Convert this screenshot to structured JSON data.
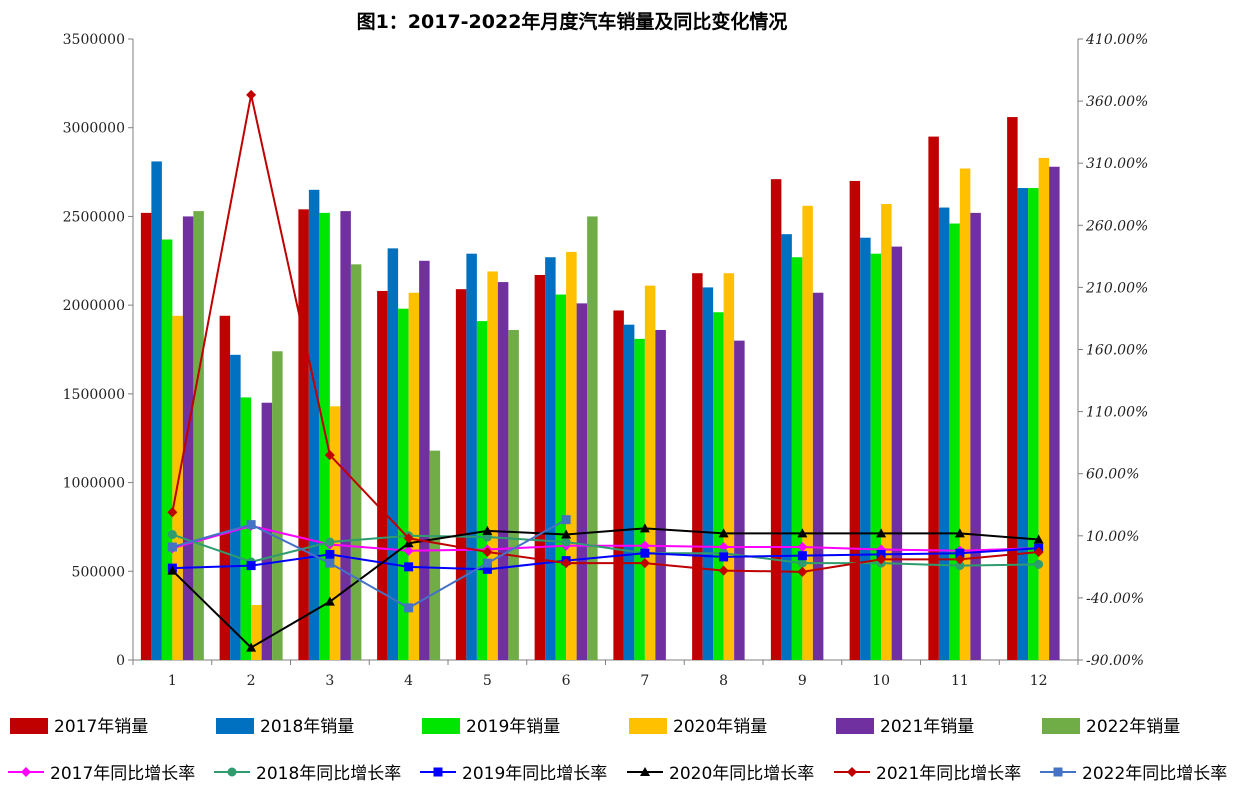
{
  "chart_data": {
    "type": "bar",
    "title": "图1：2017-2022年月度汽车销量及同比变化情况",
    "categories": [
      "1",
      "2",
      "3",
      "4",
      "5",
      "6",
      "7",
      "8",
      "9",
      "10",
      "11",
      "12"
    ],
    "y_left": {
      "min": 0,
      "max": 3500000,
      "ticks": [
        "0",
        "500000",
        "1000000",
        "1500000",
        "2000000",
        "2500000",
        "3000000",
        "3500000"
      ]
    },
    "y_right": {
      "min": -90,
      "max": 410,
      "ticks": [
        "-90.00%",
        "-40.00%",
        "10.00%",
        "60.00%",
        "110.00%",
        "160.00%",
        "210.00%",
        "260.00%",
        "310.00%",
        "360.00%",
        "410.00%"
      ]
    },
    "bar_series": [
      {
        "name": "2017年销量",
        "color": "#C00000",
        "values": [
          2520000,
          1940000,
          2540000,
          2080000,
          2090000,
          2170000,
          1970000,
          2180000,
          2710000,
          2700000,
          2950000,
          3060000
        ]
      },
      {
        "name": "2018年销量",
        "color": "#0070C0",
        "values": [
          2810000,
          1720000,
          2650000,
          2320000,
          2290000,
          2270000,
          1890000,
          2100000,
          2400000,
          2380000,
          2550000,
          2660000
        ]
      },
      {
        "name": "2019年销量",
        "color": "#00E600",
        "values": [
          2370000,
          1480000,
          2520000,
          1980000,
          1910000,
          2060000,
          1810000,
          1960000,
          2270000,
          2290000,
          2460000,
          2660000
        ]
      },
      {
        "name": "2020年销量",
        "color": "#FFC000",
        "values": [
          1940000,
          310000,
          1430000,
          2070000,
          2190000,
          2300000,
          2110000,
          2180000,
          2560000,
          2570000,
          2770000,
          2830000
        ]
      },
      {
        "name": "2021年销量",
        "color": "#7030A0",
        "values": [
          2500000,
          1450000,
          2530000,
          2250000,
          2130000,
          2010000,
          1860000,
          1800000,
          2070000,
          2330000,
          2520000,
          2780000
        ]
      },
      {
        "name": "2022年销量",
        "color": "#70AD47",
        "values": [
          2530000,
          1740000,
          2230000,
          1180000,
          1860000,
          2500000,
          null,
          null,
          null,
          null,
          null,
          null
        ]
      }
    ],
    "line_series": [
      {
        "name": "2017年同比增长率",
        "color": "#FF00FF",
        "marker": "diamond",
        "values": [
          0,
          18,
          3,
          -2,
          -1,
          2,
          2,
          1,
          1,
          -1,
          -2,
          0
        ]
      },
      {
        "name": "2018年同比增长率",
        "color": "#2E9C6E",
        "marker": "circle",
        "values": [
          11,
          -11,
          5,
          10,
          9,
          5,
          -4,
          -4,
          -12,
          -12,
          -14,
          -13
        ]
      },
      {
        "name": "2019年同比增长率",
        "color": "#0000FF",
        "marker": "square",
        "values": [
          -16,
          -14,
          -5,
          -15,
          -17,
          -10,
          -4,
          -7,
          -6,
          -5,
          -4,
          0
        ]
      },
      {
        "name": "2020年同比增长率",
        "color": "#000000",
        "marker": "triangle",
        "values": [
          -18,
          -80,
          -43,
          4,
          14,
          11,
          16,
          12,
          12,
          12,
          12,
          7
        ]
      },
      {
        "name": "2021年同比增长率",
        "color": "#C00000",
        "marker": "diamond",
        "values": [
          29,
          365,
          75,
          8,
          -3,
          -12,
          -12,
          -18,
          -19,
          -9,
          -9,
          -3
        ]
      },
      {
        "name": "2022年同比增长率",
        "color": "#4472C4",
        "marker": "square",
        "values": [
          1,
          19,
          -12,
          -48,
          -12,
          23,
          null,
          null,
          null,
          null,
          null,
          null
        ]
      }
    ],
    "legend_position": "bottom",
    "grid": false
  }
}
